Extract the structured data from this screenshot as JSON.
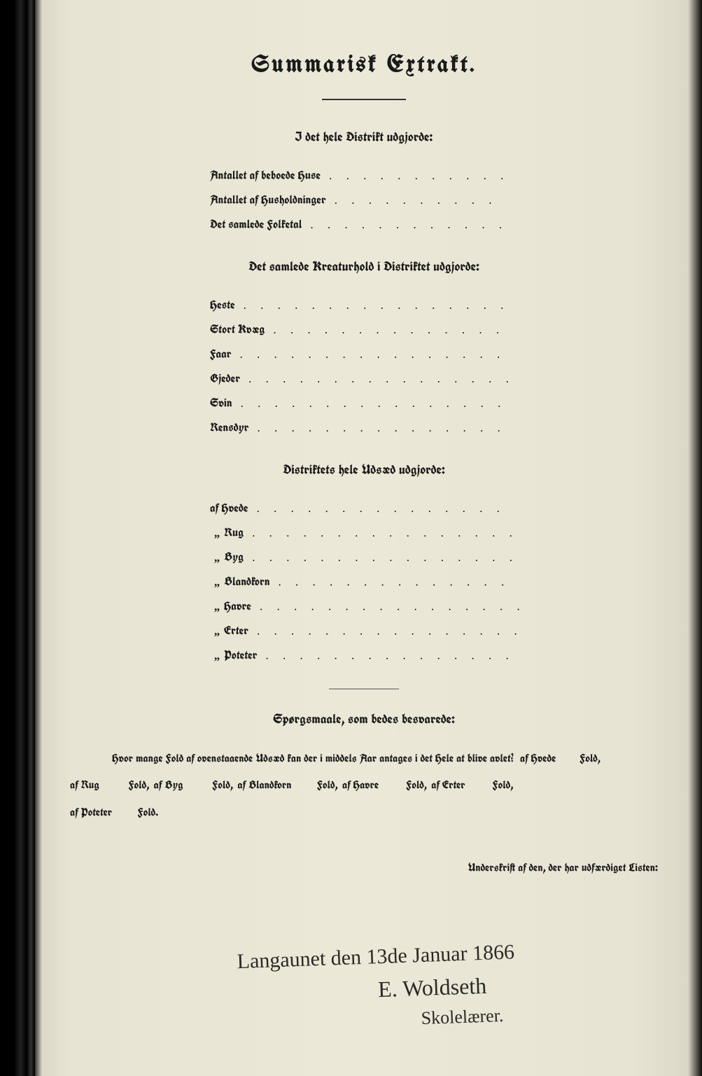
{
  "title": "Summarisk Extrakt.",
  "section1": {
    "heading": "I det hele Distrikt udgjorde:",
    "rows": [
      "Antallet af beboede Huse",
      "Antallet af Husholdninger",
      "Det samlede Folketal"
    ]
  },
  "section2": {
    "heading": "Det samlede Kreaturhold i Distriktet udgjorde:",
    "rows": [
      "Heste",
      "Stort Kvæg",
      "Faar",
      "Gjeder",
      "Svin",
      "Rensdyr"
    ]
  },
  "section3": {
    "heading": "Distriktets hele Udsæd udgjorde:",
    "first": "af Hvede",
    "rows": [
      "Rug",
      "Byg",
      "Blandkorn",
      "Havre",
      "Erter",
      "Poteter"
    ]
  },
  "section4": {
    "heading": "Spørgsmaale, som bedes besvarede:",
    "lead": "Hvor mange Fold af ovenstaaende Udsæd kan der i middels Aar antages i det Hele at blive avlet?",
    "crops": [
      "af Hvede",
      "af Rug",
      "af Byg",
      "af Blandkorn",
      "af Havre",
      "af Erter",
      "af Poteter"
    ],
    "fold": "Fold,",
    "fold_end": "Fold."
  },
  "signature_label": "Underskrift af den, der har udfærdiget Listen:",
  "handwriting": {
    "line1": "Langaunet den 13de Januar 1866",
    "line2": "E. Woldseth",
    "line3": "Skolelærer."
  },
  "colors": {
    "page_bg": "#e8e4d4",
    "ink": "#1a1a1a",
    "frame": "#0a0a0a"
  }
}
